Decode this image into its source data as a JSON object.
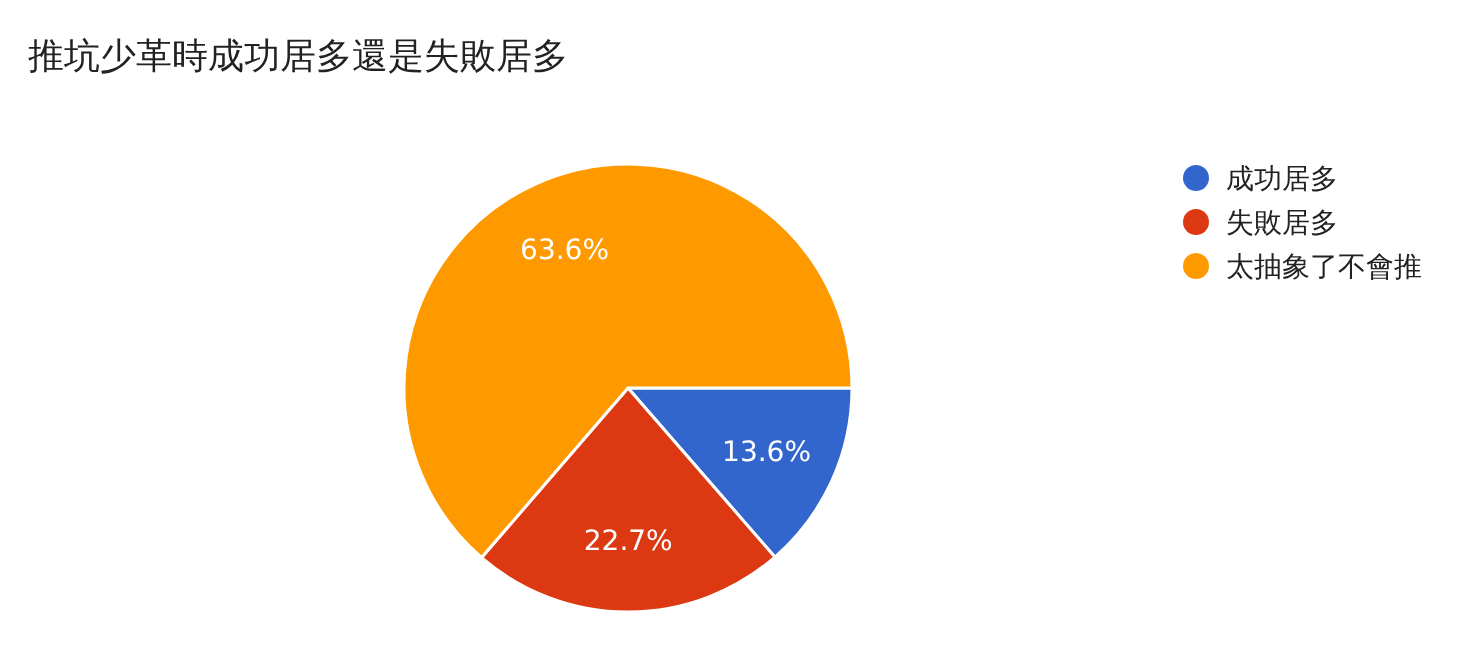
{
  "chart_data": {
    "type": "pie",
    "title": "推坑少革時成功居多還是失敗居多",
    "categories": [
      "成功居多",
      "失敗居多",
      "太抽象了不會推"
    ],
    "values": [
      13.6,
      22.7,
      63.6
    ],
    "colors": [
      "#3366cc",
      "#dc3912",
      "#ff9900"
    ],
    "value_labels": [
      "13.6%",
      "22.7%",
      "63.6%"
    ],
    "legend": "right"
  }
}
